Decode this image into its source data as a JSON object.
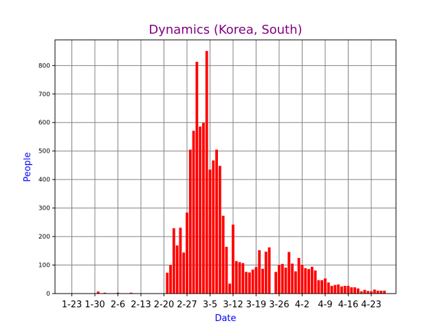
{
  "chart_data": {
    "type": "bar",
    "title": "Dynamics (Korea, South)",
    "xlabel": "Date",
    "ylabel": "People",
    "ylim": [
      0,
      890
    ],
    "grid": true,
    "legend": "none",
    "colors": {
      "bars": "#ff0000",
      "title": "#800080",
      "axis_label": "#0000ff",
      "grid": "#808080"
    },
    "yticks": [
      0,
      100,
      200,
      300,
      400,
      500,
      600,
      700,
      800
    ],
    "xticks": [
      "1-23",
      "1-30",
      "2-6",
      "2-13",
      "2-20",
      "2-27",
      "3-5",
      "3-12",
      "3-19",
      "3-26",
      "4-2",
      "4-9",
      "4-16",
      "4-23"
    ],
    "x": [
      "1-23",
      "1-24",
      "1-25",
      "1-26",
      "1-27",
      "1-28",
      "1-29",
      "1-30",
      "1-31",
      "2-1",
      "2-2",
      "2-3",
      "2-4",
      "2-5",
      "2-6",
      "2-7",
      "2-8",
      "2-9",
      "2-10",
      "2-11",
      "2-12",
      "2-13",
      "2-14",
      "2-15",
      "2-16",
      "2-17",
      "2-18",
      "2-19",
      "2-20",
      "2-21",
      "2-22",
      "2-23",
      "2-24",
      "2-25",
      "2-26",
      "2-27",
      "2-28",
      "2-29",
      "3-1",
      "3-2",
      "3-3",
      "3-4",
      "3-5",
      "3-6",
      "3-7",
      "3-8",
      "3-9",
      "3-10",
      "3-11",
      "3-12",
      "3-13",
      "3-14",
      "3-15",
      "3-16",
      "3-17",
      "3-18",
      "3-19",
      "3-20",
      "3-21",
      "3-22",
      "3-23",
      "3-24",
      "3-25",
      "3-26",
      "3-27",
      "3-28",
      "3-29",
      "3-30",
      "3-31",
      "4-1",
      "4-2",
      "4-3",
      "4-4",
      "4-5",
      "4-6",
      "4-7",
      "4-8",
      "4-9",
      "4-10",
      "4-11",
      "4-12",
      "4-13",
      "4-14",
      "4-15",
      "4-16",
      "4-17",
      "4-18",
      "4-19",
      "4-20",
      "4-21",
      "4-22",
      "4-23",
      "4-24",
      "4-25",
      "4-26",
      "4-27"
    ],
    "values": [
      0,
      0,
      0,
      0,
      0,
      0,
      0,
      0,
      7,
      0,
      3,
      0,
      0,
      0,
      3,
      1,
      0,
      0,
      3,
      0,
      0,
      0,
      0,
      0,
      0,
      0,
      0,
      0,
      0,
      73,
      100,
      229,
      169,
      231,
      144,
      284,
      505,
      571,
      813,
      586,
      599,
      851,
      435,
      467,
      505,
      448,
      273,
      164,
      35,
      242,
      114,
      110,
      107,
      76,
      74,
      84,
      93,
      152,
      87,
      147,
      162,
      0,
      76,
      100,
      104,
      91,
      146,
      105,
      78,
      125,
      101,
      89,
      86,
      94,
      81,
      47,
      47,
      53,
      39,
      27,
      30,
      32,
      25,
      27,
      27,
      22,
      22,
      18,
      8,
      13,
      9,
      8,
      14,
      10,
      10,
      10
    ]
  }
}
